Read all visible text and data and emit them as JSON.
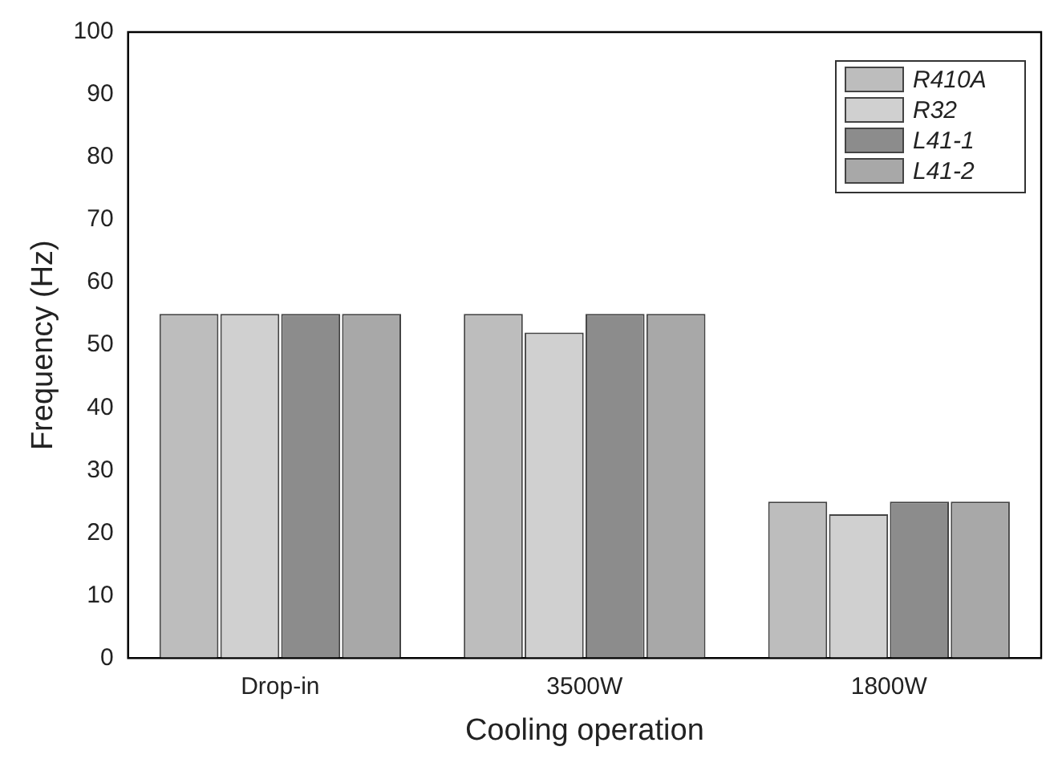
{
  "chart_data": {
    "type": "bar",
    "xlabel": "Cooling operation",
    "ylabel": "Frequency (Hz)",
    "categories": [
      "Drop-in",
      "3500W",
      "1800W"
    ],
    "series": [
      {
        "name": "R410A",
        "color": "#bdbdbd",
        "values": [
          55,
          55,
          25
        ]
      },
      {
        "name": "R32",
        "color": "#d0d0d0",
        "values": [
          55,
          52,
          23
        ]
      },
      {
        "name": "L41-1",
        "color": "#8c8c8c",
        "values": [
          55,
          55,
          25
        ]
      },
      {
        "name": "L41-2",
        "color": "#a8a8a8",
        "values": [
          55,
          55,
          25
        ]
      }
    ],
    "ylim": [
      0,
      100
    ],
    "yticks": [
      0,
      10,
      20,
      30,
      40,
      50,
      60,
      70,
      80,
      90,
      100
    ],
    "grid": false,
    "legend": "top right"
  }
}
